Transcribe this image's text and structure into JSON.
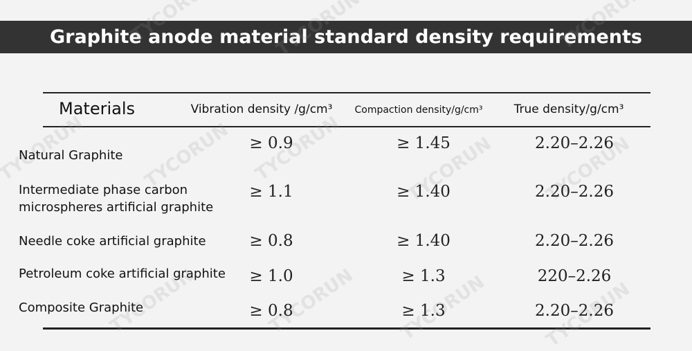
{
  "header": {
    "title": "Graphite anode material standard density requirements"
  },
  "watermark": "TYCORUN",
  "table": {
    "columns": [
      "Materials",
      "Vibration density /g/cm³",
      "Compaction density/g/cm³",
      "True density/g/cm³"
    ],
    "rows": [
      [
        "Natural Graphite",
        "≥ 0.9",
        "≥ 1.45",
        "2.20–2.26"
      ],
      [
        "Intermediate phase carbon\nmicrospheres artificial graphite",
        "≥ 1.1",
        "≥ 1.40",
        "2.20–2.26"
      ],
      [
        "Needle coke artificial graphite",
        "≥ 0.8",
        "≥ 1.40",
        "2.20–2.26"
      ],
      [
        "Petroleum coke artificial graphite",
        "≥ 1.0",
        "≥ 1.3",
        "220–2.26"
      ],
      [
        "Composite Graphite",
        "≥ 0.8",
        "≥ 1.3",
        "2.20–2.26"
      ]
    ]
  }
}
